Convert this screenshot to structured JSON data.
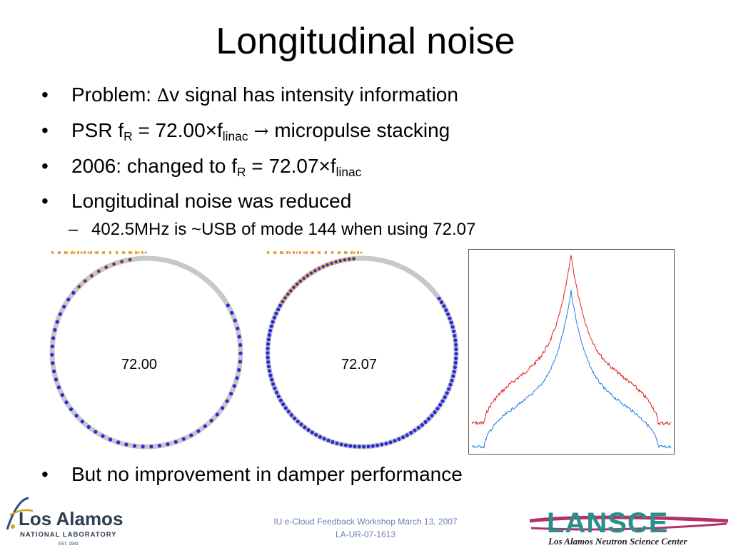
{
  "slide": {
    "title": "Longitudinal noise",
    "bullet_char": "•",
    "dash_char": "–",
    "bullets": {
      "b1_text": "Problem: ",
      "b1_delta": "∆",
      "b1_rest": "v signal has intensity information",
      "b2_a": "PSR f",
      "b2_sub1": "R",
      "b2_b": " = 72.00×f",
      "b2_sub2": "linac",
      "b2_arrow": " → ",
      "b2_c": "micropulse stacking",
      "b3_a": "2006: changed to f",
      "b3_sub1": "R",
      "b3_b": " = 72.07×f",
      "b3_sub2": "linac",
      "b4": "Longitudinal noise was reduced",
      "sub1": "402.5MHz is ~USB of mode 144 when using 72.07",
      "b5": "But no improvement in damper performance"
    },
    "rings": {
      "left_label": "72.00",
      "right_label": "72.07"
    },
    "footer": {
      "line1": "IU e-Cloud Feedback Workshop March 13, 2007",
      "line2": "LA-UR-07-1613"
    },
    "logos": {
      "lanl_name": "Los Alamos",
      "lanl_sub": "NATIONAL LABORATORY",
      "lanl_est": "EST. 1943",
      "lansce_name": "LANSCE",
      "lansce_sub": "Los Alamos Neutron Science Center"
    },
    "colors": {
      "dot_blue": "#2a2ad8",
      "dot_orange": "#e8a23a",
      "ring_gray": "#c8c8c8",
      "trace_red": "#e02020",
      "trace_blue": "#2080e0",
      "lansce_teal": "#2a8f8a",
      "lansce_magenta": "#b0336e",
      "footer_blue": "#6b7fb3"
    }
  }
}
